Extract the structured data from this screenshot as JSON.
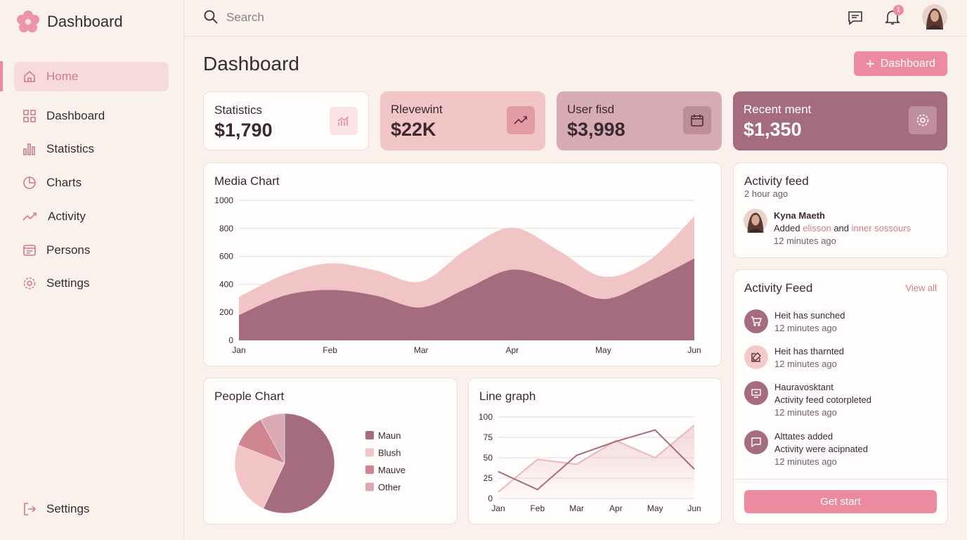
{
  "sidebar": {
    "brand": "Dashboard",
    "nav": [
      "Home",
      "Dashboard",
      "Statistics",
      "Charts",
      "Activity",
      "Persons",
      "Settings"
    ],
    "footer": "Settings"
  },
  "topbar": {
    "search": "Search",
    "badge": "1"
  },
  "header": {
    "title": "Dashboard",
    "button": "Dashboard"
  },
  "stats": [
    {
      "label": "Statistics",
      "value": "$1,790"
    },
    {
      "label": "Rlevewint",
      "value": "$22K"
    },
    {
      "label": "User fisd",
      "value": "$3,998"
    },
    {
      "label": "Recent ment",
      "value": "$1,350"
    }
  ],
  "chart_data": [
    {
      "type": "area",
      "title": "Media Chart",
      "categories": [
        "Jan",
        null,
        "Feb",
        null,
        "Mar",
        null,
        "Apr",
        null,
        "May",
        null,
        "Jun"
      ],
      "series": [
        {
          "color": "#f1c5c5",
          "values": [
            310,
            470,
            550,
            500,
            420,
            650,
            805,
            645,
            455,
            570,
            885
          ]
        },
        {
          "color": "#a56b7e",
          "values": [
            180,
            320,
            360,
            320,
            235,
            370,
            505,
            420,
            295,
            420,
            585
          ]
        }
      ],
      "ylim": [
        0,
        1000
      ],
      "yticks": [
        0,
        200,
        400,
        600,
        800,
        1000
      ],
      "grid": true
    },
    {
      "type": "pie",
      "title": "People Chart",
      "categories": [
        "Maun",
        "Blush",
        "Mauve",
        "Other"
      ],
      "values": [
        57,
        24,
        11,
        8
      ],
      "colors": [
        "#a56b7e",
        "#f1c5c5",
        "#cf8590",
        "#d9aab4"
      ]
    },
    {
      "type": "line",
      "title": "Line graph",
      "categories": [
        "Jan",
        "Feb",
        "Mar",
        "Apr",
        "May",
        "Jun"
      ],
      "series": [
        {
          "color": "#e9b7bc",
          "area": true,
          "values": [
            8,
            48,
            42,
            71,
            50,
            90
          ]
        },
        {
          "color": "#a56b7e",
          "values": [
            33,
            11,
            53,
            70,
            84,
            36
          ]
        }
      ],
      "ylim": [
        0,
        100
      ],
      "yticks": [
        0,
        25,
        50,
        75,
        100
      ],
      "grid": true
    }
  ],
  "activity": {
    "title": "Activity feed",
    "subtitle": "2 hour ago",
    "person": "Kyna Maeth",
    "text": [
      "Added",
      "elisson",
      "and",
      "inner sossours"
    ],
    "time": "12 minutes ago"
  },
  "feed": {
    "title": "Activity Feed",
    "link": "View all",
    "button": "Get start",
    "items": [
      {
        "lines": [
          "Heit has sunched",
          "12 minutes ago"
        ]
      },
      {
        "lines": [
          "Heit has tharnted",
          "12 minutes ago"
        ]
      },
      {
        "lines": [
          "Hauravosktant",
          "Activity feed cotorpleted",
          "12 minutes ago"
        ]
      },
      {
        "lines": [
          "Alttates added",
          "Activity were acipnated",
          "12 minutes ago"
        ]
      }
    ]
  }
}
